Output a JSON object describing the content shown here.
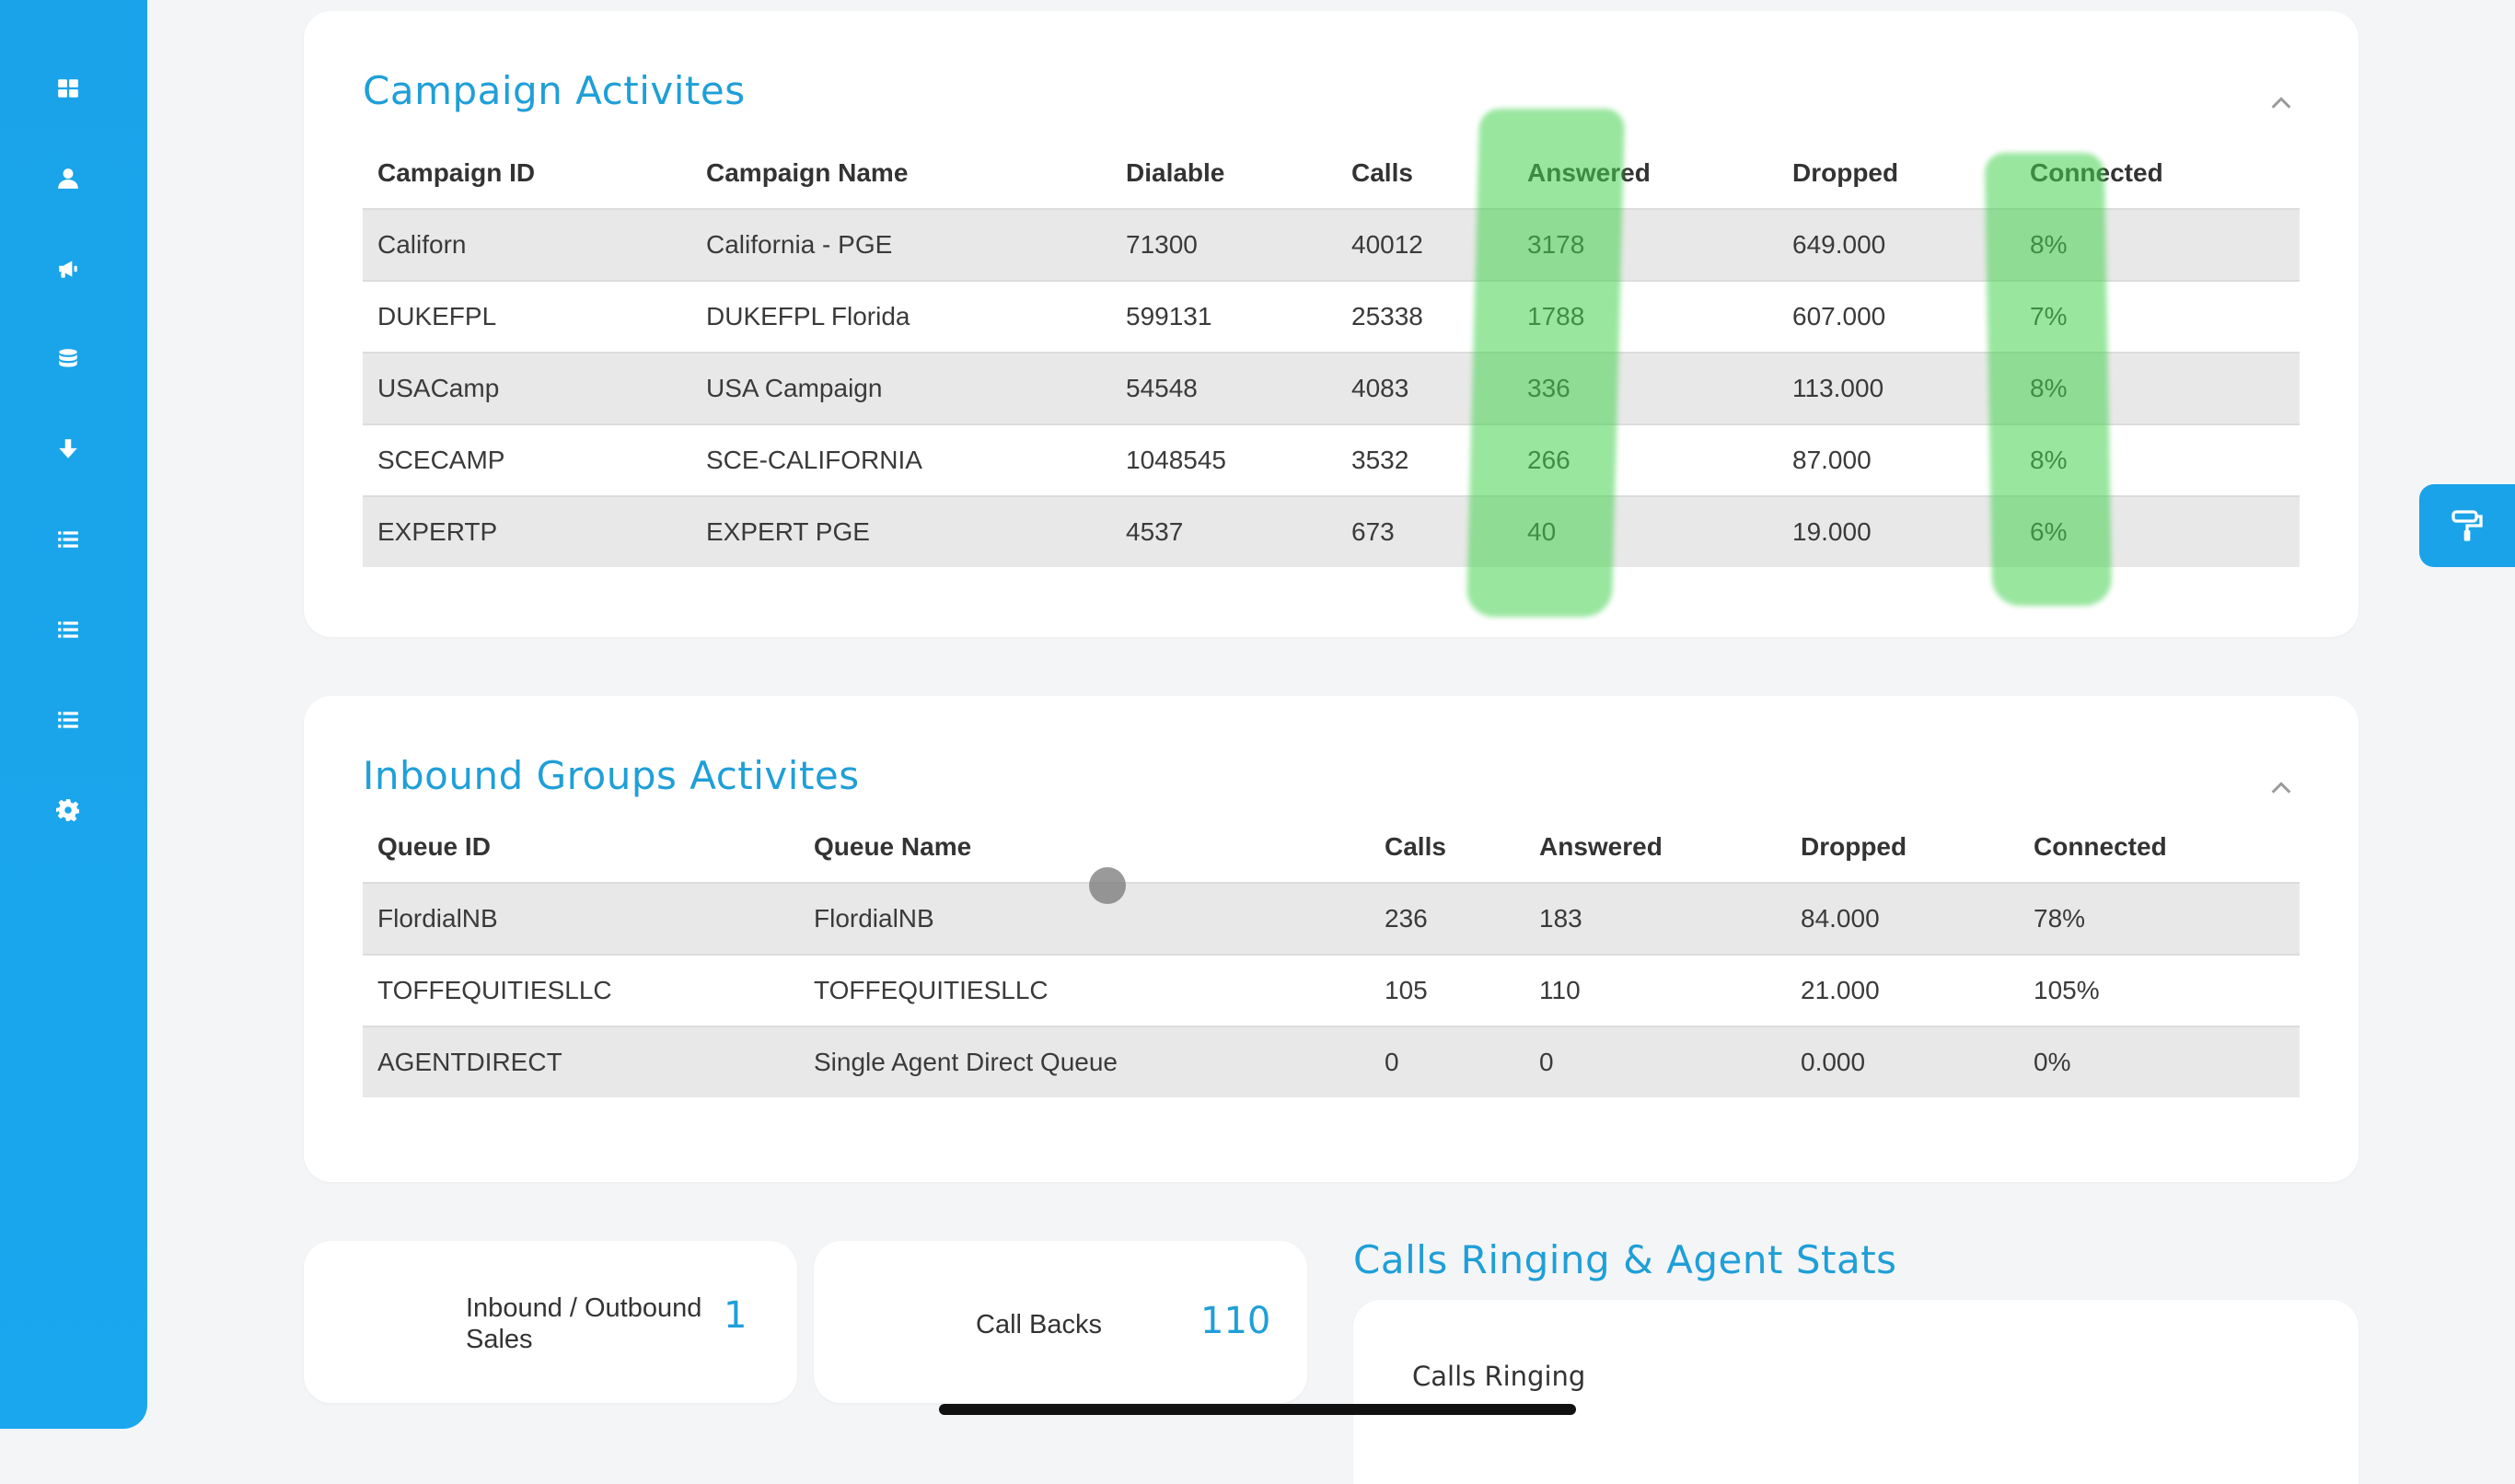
{
  "sidebar": {
    "items": [
      {
        "icon": "dashboard-icon"
      },
      {
        "icon": "user-icon"
      },
      {
        "icon": "megaphone-icon"
      },
      {
        "icon": "database-icon"
      },
      {
        "icon": "download-icon"
      },
      {
        "icon": "list-icon"
      },
      {
        "icon": "list-icon"
      },
      {
        "icon": "list-icon"
      },
      {
        "icon": "gear-icon"
      }
    ]
  },
  "campaigns": {
    "title": "Campaign Activites",
    "headers": [
      "Campaign ID",
      "Campaign Name",
      "Dialable",
      "Calls",
      "Answered",
      "Dropped",
      "Connected"
    ],
    "rows": [
      [
        "Californ",
        "California - PGE",
        "71300",
        "40012",
        "3178",
        "649.000",
        "8%"
      ],
      [
        "DUKEFPL",
        "DUKEFPL Florida",
        "599131",
        "25338",
        "1788",
        "607.000",
        "7%"
      ],
      [
        "USACamp",
        "USA Campaign",
        "54548",
        "4083",
        "336",
        "113.000",
        "8%"
      ],
      [
        "SCECAMP",
        "SCE-CALIFORNIA",
        "1048545",
        "3532",
        "266",
        "87.000",
        "8%"
      ],
      [
        "EXPERTP",
        "EXPERT PGE",
        "4537",
        "673",
        "40",
        "19.000",
        "6%"
      ]
    ]
  },
  "inbound": {
    "title": "Inbound Groups Activites",
    "headers": [
      "Queue ID",
      "Queue Name",
      "Calls",
      "Answered",
      "Dropped",
      "Connected"
    ],
    "rows": [
      [
        "FlordialNB",
        "FlordialNB",
        "236",
        "183",
        "84.000",
        "78%"
      ],
      [
        "TOFFEQUITIESLLC",
        "TOFFEQUITIESLLC",
        "105",
        "110",
        "21.000",
        "105%"
      ],
      [
        "AGENTDIRECT",
        "Single Agent Direct Queue",
        "0",
        "0",
        "0.000",
        "0%"
      ]
    ]
  },
  "stats": {
    "sales_label_1": "Inbound / Outbound",
    "sales_label_2": "Sales",
    "sales_value": "1",
    "callbacks_label": "Call Backs",
    "callbacks_value": "110",
    "ringing_title": "Calls Ringing & Agent Stats",
    "ringing_label": "Calls Ringing"
  },
  "colors": {
    "accent": "#1f9fd8",
    "sidebar": "#1aa3e8",
    "highlighter": "#46d250"
  }
}
